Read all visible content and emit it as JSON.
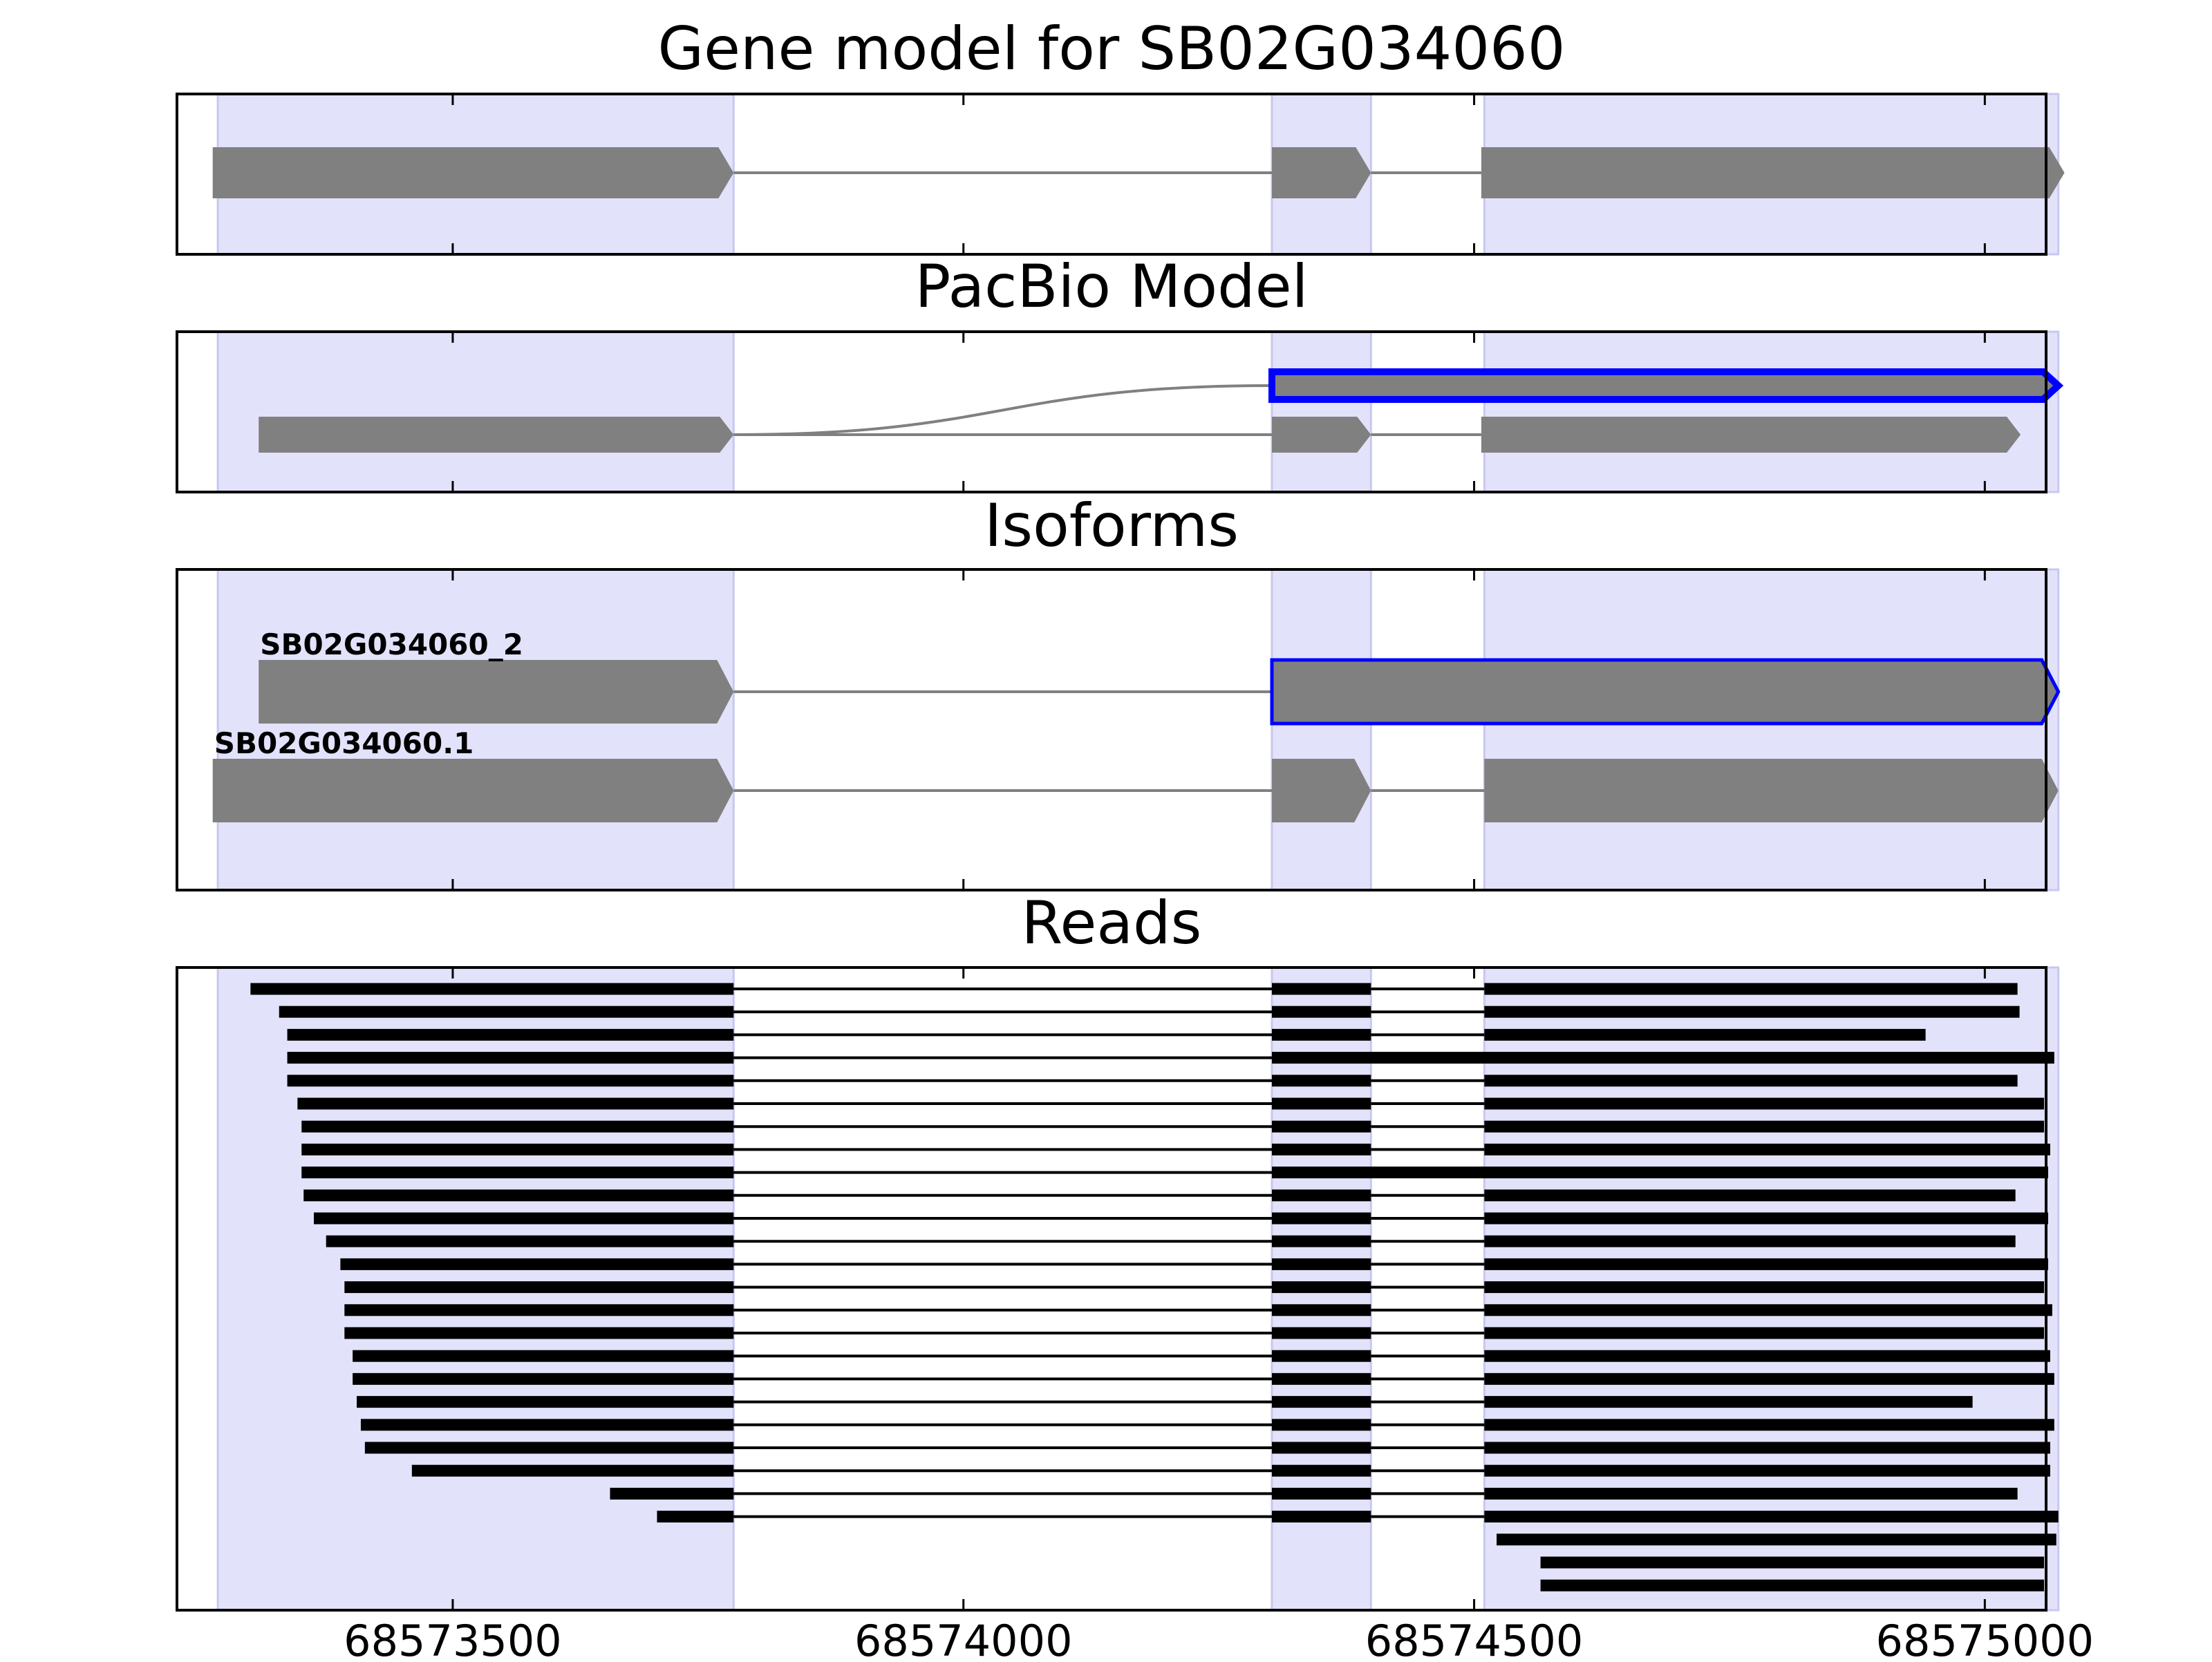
{
  "chart_data": {
    "type": "gene-structure",
    "xlim": [
      68573230,
      68575060
    ],
    "x_ticks": [
      68573500,
      68574000,
      68574500,
      68575000
    ],
    "x_tick_labels": [
      "68573500",
      "68574000",
      "68574500",
      "68575000"
    ],
    "colors": {
      "exon_fill": "#808080",
      "highlight_edge": "#0000ff",
      "exon_band": "#e2e2fb",
      "intron": "#808080",
      "read": "#000000",
      "frame": "#000000"
    },
    "exon_bands": [
      [
        68573270,
        68573775
      ],
      [
        68574302,
        68574399
      ],
      [
        68574510,
        68575072
      ]
    ],
    "gene_model": {
      "title": "Gene model for SB02G034060",
      "exons": [
        [
          68573265,
          68573775
        ],
        [
          68574302,
          68574399
        ],
        [
          68574507,
          68575078
        ]
      ]
    },
    "pacbio_model": {
      "title": "PacBio Model",
      "tracks": [
        {
          "highlight": true,
          "exons": [
            [
              68574302,
              68575072
            ]
          ],
          "spliced_from": 68573775
        },
        {
          "highlight": false,
          "exons": [
            [
              68573310,
              68573775
            ],
            [
              68574302,
              68574399
            ],
            [
              68574507,
              68575035
            ]
          ]
        }
      ]
    },
    "isoforms": {
      "title": "Isoforms",
      "tracks": [
        {
          "label": "SB02G034060_2",
          "highlight": true,
          "exons": [
            [
              68573310,
              68573775
            ],
            [
              68574302,
              68575072
            ]
          ]
        },
        {
          "label": "SB02G034060.1",
          "highlight": false,
          "exons": [
            [
              68573265,
              68573775
            ],
            [
              68574302,
              68574399
            ],
            [
              68574510,
              68575072
            ]
          ]
        }
      ]
    },
    "reads": {
      "title": "Reads",
      "introns": [
        [
          68573775,
          68574302
        ],
        [
          68574399,
          68574510
        ]
      ],
      "alignments": [
        [
          68573302,
          68575032
        ],
        [
          68573330,
          68575034
        ],
        [
          68573338,
          68574942
        ],
        [
          68573338,
          68575068,
          "ir2"
        ],
        [
          68573338,
          68575032
        ],
        [
          68573348,
          68575058
        ],
        [
          68573352,
          68575058
        ],
        [
          68573352,
          68575064
        ],
        [
          68573352,
          68575062,
          "ir2"
        ],
        [
          68573354,
          68575030
        ],
        [
          68573364,
          68575062
        ],
        [
          68573376,
          68575030
        ],
        [
          68573390,
          68575062
        ],
        [
          68573394,
          68575058
        ],
        [
          68573394,
          68575066
        ],
        [
          68573394,
          68575058
        ],
        [
          68573402,
          68575064
        ],
        [
          68573402,
          68575068
        ],
        [
          68573406,
          68574988
        ],
        [
          68573410,
          68575068
        ],
        [
          68573414,
          68575064
        ],
        [
          68573460,
          68575064
        ],
        [
          68573654,
          68575032
        ],
        [
          68573700,
          68575072
        ],
        [
          68574522,
          68575070,
          "3p"
        ],
        [
          68574565,
          68575058,
          "3p"
        ],
        [
          68574565,
          68575058,
          "3p"
        ]
      ]
    }
  }
}
